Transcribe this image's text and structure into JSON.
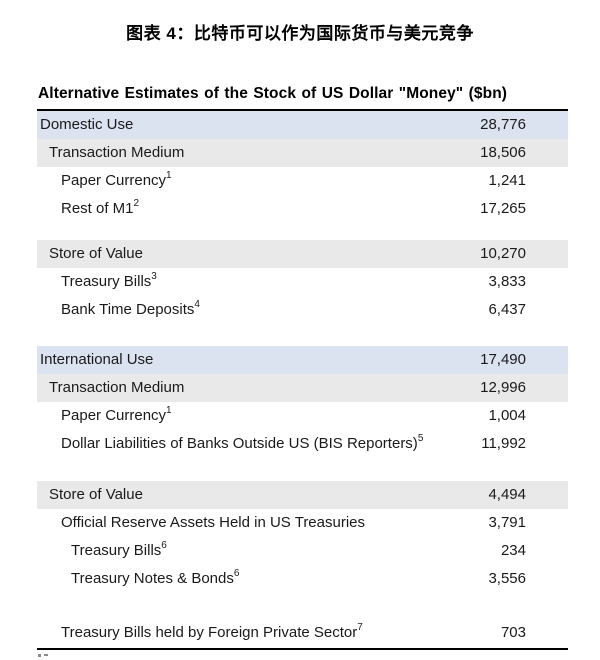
{
  "page": {
    "title": "图表 4：比特币可以作为国际货币与美元竞争"
  },
  "colors": {
    "blue_row": "#dbe2f0",
    "gray_row": "#e9e9e9",
    "text": "#1a1a1a",
    "rule": "#000000"
  },
  "table": {
    "header": "Alternative Estimates of the Stock of US Dollar \"Money\" ($bn)",
    "rows": [
      {
        "label": "Domestic Use",
        "sup": "",
        "value": "28,776",
        "style": "blue",
        "indent": 0
      },
      {
        "label": "Transaction Medium",
        "sup": "",
        "value": "18,506",
        "style": "gray",
        "indent": 1
      },
      {
        "label": "Paper Currency",
        "sup": "1",
        "value": "1,241",
        "style": "white",
        "indent": 2
      },
      {
        "label": "Rest of M1",
        "sup": "2",
        "value": "17,265",
        "style": "white",
        "indent": 2
      },
      {
        "style": "spacer",
        "height": 17
      },
      {
        "label": "Store of Value",
        "sup": "",
        "value": "10,270",
        "style": "gray",
        "indent": 1
      },
      {
        "label": "Treasury Bills",
        "sup": "3",
        "value": "3,833",
        "style": "white",
        "indent": 2
      },
      {
        "label": "Bank Time Deposits",
        "sup": "4",
        "value": "6,437",
        "style": "white",
        "indent": 2
      },
      {
        "style": "spacer",
        "height": 22
      },
      {
        "label": "International Use",
        "sup": "",
        "value": "17,490",
        "style": "blue",
        "indent": 0
      },
      {
        "label": "Transaction Medium",
        "sup": "",
        "value": "12,996",
        "style": "gray",
        "indent": 1
      },
      {
        "label": "Paper Currency",
        "sup": "1",
        "value": "1,004",
        "style": "white",
        "indent": 2
      },
      {
        "label": "Dollar Liabilities of Banks Outside US (BIS Reporters)",
        "sup": "5",
        "value": "11,992",
        "style": "white",
        "indent": 2
      },
      {
        "style": "spacer",
        "height": 23
      },
      {
        "label": "Store of Value",
        "sup": "",
        "value": "4,494",
        "style": "gray",
        "indent": 1
      },
      {
        "label": "Official Reserve Assets Held in US Treasuries",
        "sup": "",
        "value": "3,791",
        "style": "white",
        "indent": 2
      },
      {
        "label": "Treasury Bills",
        "sup": "6",
        "value": "234",
        "style": "white",
        "indent": 3
      },
      {
        "label": "Treasury Notes & Bonds",
        "sup": "6",
        "value": "3,556",
        "style": "white",
        "indent": 3
      },
      {
        "style": "spacer",
        "height": 26
      },
      {
        "label": "Treasury Bills held by Foreign Private Sector",
        "sup": "7",
        "value": "703",
        "style": "white",
        "indent": 2
      }
    ]
  },
  "chart_data": {
    "type": "table",
    "title": "Alternative Estimates of the Stock of US Dollar \"Money\" ($bn)",
    "figure_caption": "图表 4：比特币可以作为国际货币与美元竞争",
    "unit": "$bn",
    "rows": [
      {
        "label": "Domestic Use",
        "footnote": "",
        "value": 28776,
        "level": 0
      },
      {
        "label": "Transaction Medium",
        "footnote": "",
        "value": 18506,
        "level": 1
      },
      {
        "label": "Paper Currency",
        "footnote": "1",
        "value": 1241,
        "level": 2
      },
      {
        "label": "Rest of M1",
        "footnote": "2",
        "value": 17265,
        "level": 2
      },
      {
        "label": "Store of Value",
        "footnote": "",
        "value": 10270,
        "level": 1
      },
      {
        "label": "Treasury Bills",
        "footnote": "3",
        "value": 3833,
        "level": 2
      },
      {
        "label": "Bank Time Deposits",
        "footnote": "4",
        "value": 6437,
        "level": 2
      },
      {
        "label": "International Use",
        "footnote": "",
        "value": 17490,
        "level": 0
      },
      {
        "label": "Transaction Medium",
        "footnote": "",
        "value": 12996,
        "level": 1
      },
      {
        "label": "Paper Currency",
        "footnote": "1",
        "value": 1004,
        "level": 2
      },
      {
        "label": "Dollar Liabilities of Banks Outside US (BIS Reporters)",
        "footnote": "5",
        "value": 11992,
        "level": 2
      },
      {
        "label": "Store of Value",
        "footnote": "",
        "value": 4494,
        "level": 1
      },
      {
        "label": "Official Reserve Assets Held in US Treasuries",
        "footnote": "",
        "value": 3791,
        "level": 2
      },
      {
        "label": "Treasury Bills",
        "footnote": "6",
        "value": 234,
        "level": 3
      },
      {
        "label": "Treasury Notes & Bonds",
        "footnote": "6",
        "value": 3556,
        "level": 3
      },
      {
        "label": "Treasury Bills held by Foreign Private Sector",
        "footnote": "7",
        "value": 703,
        "level": 2
      }
    ]
  }
}
